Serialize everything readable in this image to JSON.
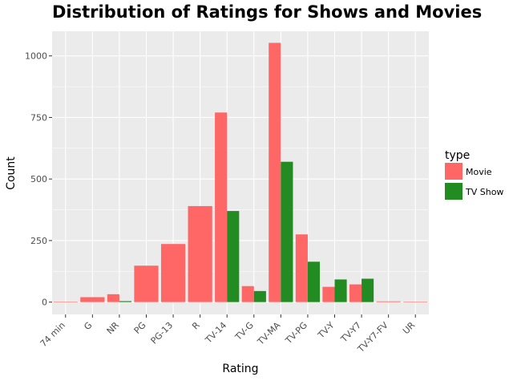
{
  "chart_data": {
    "type": "bar",
    "title": "Distribution of Ratings for Shows and Movies",
    "xlabel": "Rating",
    "ylabel": "Count",
    "categories": [
      "74 min",
      "G",
      "NR",
      "PG",
      "PG-13",
      "R",
      "TV-14",
      "TV-G",
      "TV-MA",
      "TV-PG",
      "TV-Y",
      "TV-Y7",
      "TV-Y7-FV",
      "UR"
    ],
    "series": [
      {
        "name": "Movie",
        "color": "#ff6666",
        "values": [
          1,
          20,
          32,
          148,
          236,
          390,
          770,
          65,
          1053,
          275,
          62,
          72,
          3,
          1
        ]
      },
      {
        "name": "TV Show",
        "color": "#228b22",
        "values": [
          null,
          null,
          4,
          null,
          null,
          null,
          370,
          45,
          570,
          164,
          92,
          95,
          null,
          null
        ]
      }
    ],
    "yticks": [
      0,
      250,
      500,
      750,
      1000
    ],
    "ytick_labels": [
      "0",
      "250",
      "500",
      "750",
      "1000"
    ],
    "ylim": [
      -50,
      1100
    ],
    "grid": true,
    "legend": {
      "title": "type",
      "placement": "right"
    }
  }
}
